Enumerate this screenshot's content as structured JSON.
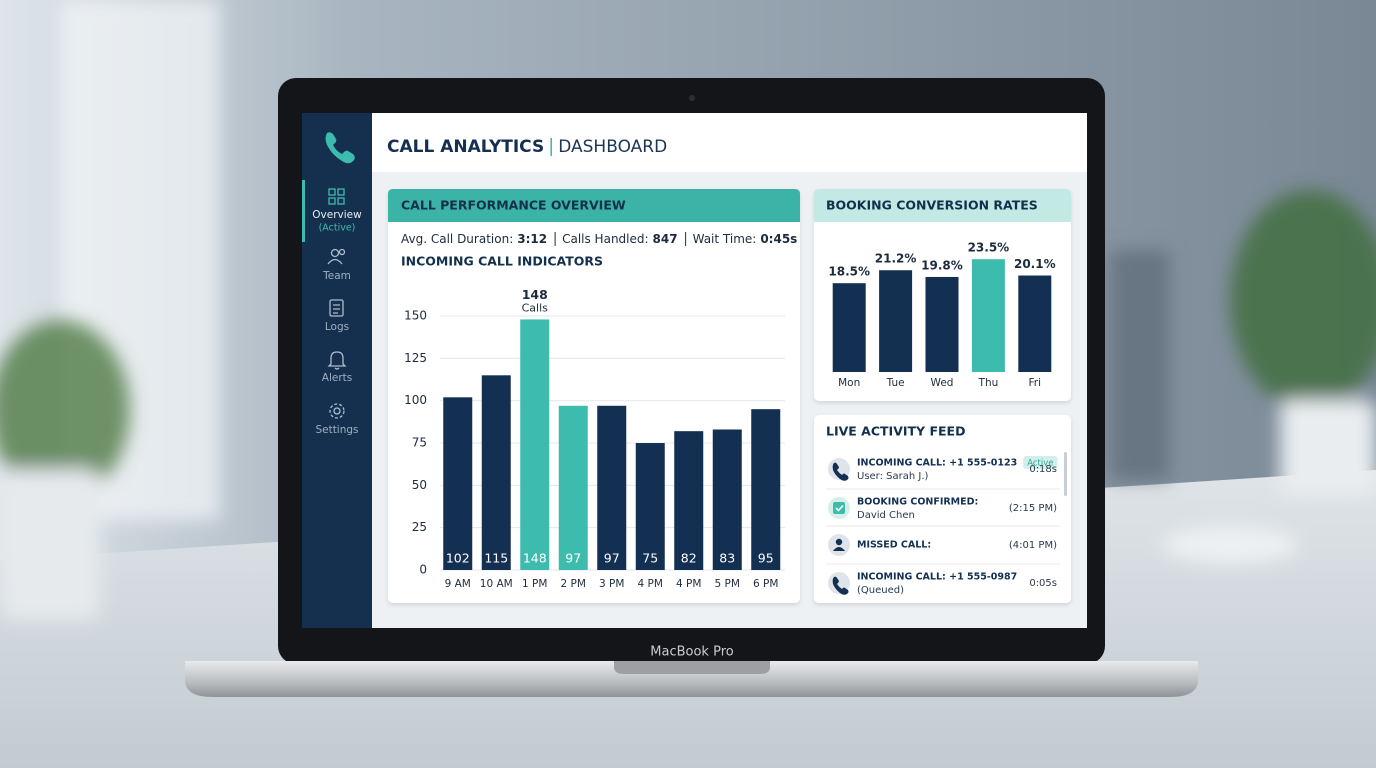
{
  "sidebar": {
    "items": [
      {
        "label": "Overview",
        "note": "(Active)"
      },
      {
        "label": "Team"
      },
      {
        "label": "Logs"
      },
      {
        "label": "Alerts"
      },
      {
        "label": "Settings"
      }
    ]
  },
  "header": {
    "title": "CALL ANALYTICS",
    "subtitle": "DASHBOARD"
  },
  "performance": {
    "title": "CALL PERFORMANCE OVERVIEW",
    "stats": [
      {
        "label": "Avg. Call Duration:",
        "value": "3:12"
      },
      {
        "label": "Calls Handled:",
        "value": "847"
      },
      {
        "label": "Wait Time:",
        "value": "0:45s"
      }
    ]
  },
  "chart_data": [
    {
      "type": "bar",
      "title": "INCOMING CALL INDICATORS",
      "categories": [
        "9 AM",
        "10 AM",
        "1 PM",
        "2 PM",
        "3 PM",
        "4 PM",
        "4 PM",
        "5 PM",
        "6 PM"
      ],
      "values": [
        102,
        115,
        148,
        97,
        97,
        75,
        82,
        83,
        95
      ],
      "color": "#132f52",
      "highlight_color": "#3dbcad",
      "highlight": [
        false,
        false,
        true,
        true,
        false,
        false,
        false,
        false,
        false
      ],
      "annotation": {
        "value": 148,
        "text": "Calls"
      },
      "ylim": [
        0,
        160
      ],
      "yticks": [
        0,
        25,
        50,
        75,
        100,
        125,
        150
      ],
      "grid": true
    },
    {
      "type": "bar",
      "title": "BOOKING CONVERSION RATES",
      "categories": [
        "Mon",
        "Tue",
        "Wed",
        "Thu",
        "Fri"
      ],
      "values": [
        18.5,
        21.2,
        19.8,
        23.5,
        20.1
      ],
      "value_labels": [
        "18.5%",
        "21.2%",
        "19.8%",
        "23.5%",
        "20.1%"
      ],
      "color": "#132f52",
      "highlight_color": "#3dbcad",
      "highlight": [
        false,
        false,
        false,
        true,
        false
      ],
      "ylim": [
        0,
        25
      ]
    }
  ],
  "feed": {
    "title": "LIVE ACTIVITY FEED",
    "items": [
      {
        "title": "INCOMING CALL: +1 555-0123",
        "badge": "Active",
        "detail": "User: Sarah J.)",
        "time": "0:18s"
      },
      {
        "title": "BOOKING CONFIRMED:",
        "detail": "David Chen",
        "time": "(2:15 PM)"
      },
      {
        "title": "MISSED CALL:",
        "time": "(4:01 PM)"
      },
      {
        "title": "INCOMING CALL: +1 555-0987",
        "detail": "(Queued)",
        "time": "0:05s"
      }
    ]
  },
  "device": {
    "label": "MacBook Pro"
  }
}
